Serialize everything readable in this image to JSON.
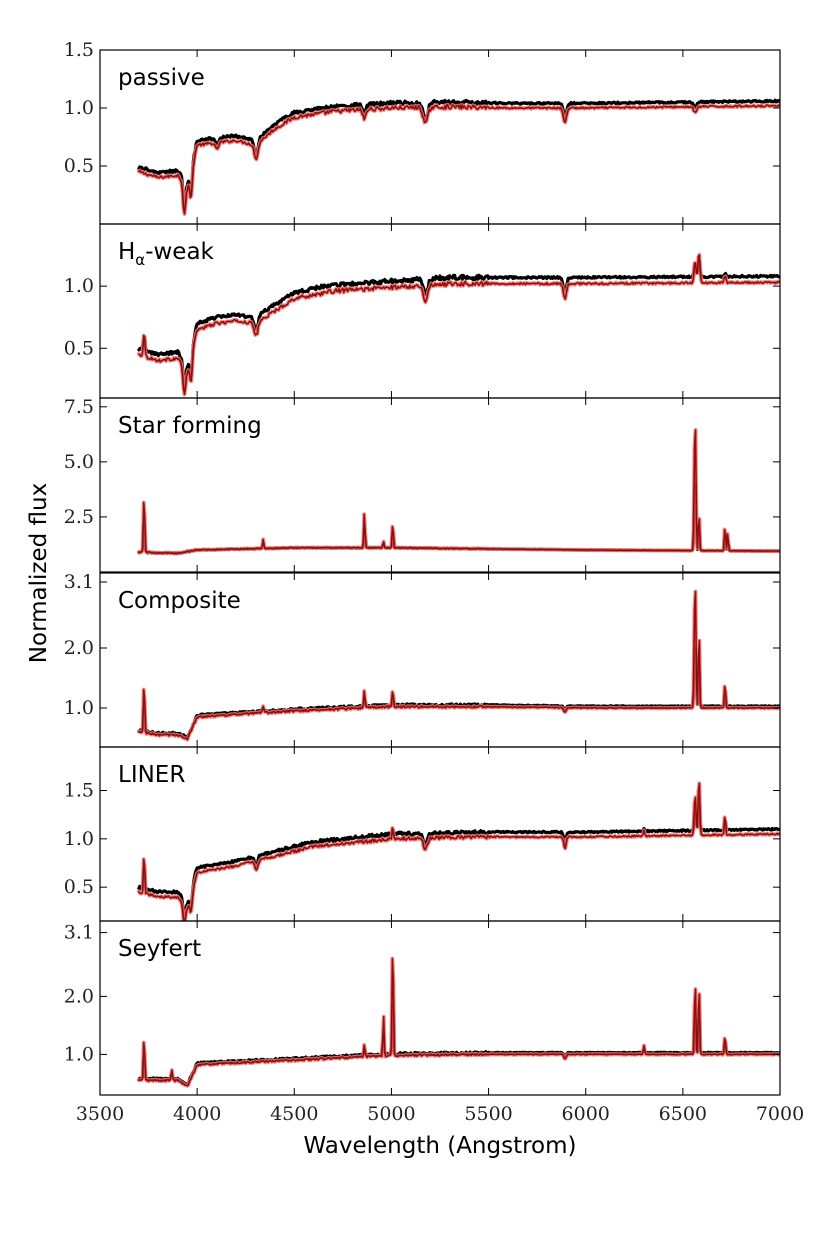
{
  "chart_data": {
    "type": "line",
    "ylabel": "Normalized flux",
    "xlabel": "Wavelength (Angstrom)",
    "xlim": [
      3500,
      7000
    ],
    "x_ticks": [
      3500,
      4000,
      4500,
      5000,
      5500,
      6000,
      6500,
      7000
    ],
    "x_tick_labels": [
      "3500",
      "4000",
      "4500",
      "5000",
      "5500",
      "6000",
      "6500",
      "7000"
    ],
    "colors": {
      "stacked": "#f07a78",
      "median": "#000000",
      "overlap": "#8b0000"
    },
    "panels": [
      {
        "title": "passive",
        "title_sub": "",
        "ylim": [
          0.0,
          1.5
        ],
        "y_ticks": [
          0.5,
          1.0,
          1.5
        ],
        "y_tick_labels": [
          "0.5",
          "1.0",
          "1.5"
        ],
        "continuum": [
          [
            3700,
            0.45
          ],
          [
            3800,
            0.4
          ],
          [
            3900,
            0.42
          ],
          [
            3950,
            0.3
          ],
          [
            4000,
            0.68
          ],
          [
            4100,
            0.7
          ],
          [
            4200,
            0.72
          ],
          [
            4300,
            0.68
          ],
          [
            4400,
            0.82
          ],
          [
            4500,
            0.92
          ],
          [
            4700,
            0.97
          ],
          [
            5000,
            1.0
          ],
          [
            5300,
            1.01
          ],
          [
            5600,
            1.0
          ],
          [
            6000,
            1.0
          ],
          [
            7000,
            1.02
          ]
        ],
        "black_offset": 0.04,
        "lines": [
          [
            3934,
            -0.25,
            0.7,
            6
          ],
          [
            3969,
            -0.22,
            0.7,
            6
          ],
          [
            4101,
            -0.06,
            0.5,
            8
          ],
          [
            4304,
            -0.12,
            0.8,
            10
          ],
          [
            4861,
            -0.08,
            0.7,
            8
          ],
          [
            5175,
            -0.14,
            0.8,
            12
          ],
          [
            5893,
            -0.13,
            0.8,
            8
          ],
          [
            6563,
            -0.05,
            0.7,
            8
          ]
        ]
      },
      {
        "title": "H",
        "title_sub": "α",
        "title_tail": "-weak",
        "ylim": [
          0.1,
          1.5
        ],
        "y_ticks": [
          0.5,
          1.0
        ],
        "y_tick_labels": [
          "0.5",
          "1.0"
        ],
        "continuum": [
          [
            3700,
            0.45
          ],
          [
            3800,
            0.4
          ],
          [
            3900,
            0.42
          ],
          [
            3950,
            0.3
          ],
          [
            4000,
            0.65
          ],
          [
            4100,
            0.7
          ],
          [
            4200,
            0.72
          ],
          [
            4300,
            0.7
          ],
          [
            4400,
            0.8
          ],
          [
            4500,
            0.9
          ],
          [
            4700,
            0.96
          ],
          [
            5000,
            0.99
          ],
          [
            5300,
            1.02
          ],
          [
            5600,
            1.02
          ],
          [
            6000,
            1.02
          ],
          [
            7000,
            1.03
          ]
        ],
        "black_offset": 0.05,
        "lines": [
          [
            3727,
            0.2,
            0.25,
            4
          ],
          [
            3934,
            -0.22,
            0.7,
            6
          ],
          [
            3969,
            -0.2,
            0.7,
            6
          ],
          [
            4304,
            -0.1,
            0.8,
            10
          ],
          [
            5175,
            -0.12,
            0.8,
            12
          ],
          [
            5893,
            -0.12,
            0.8,
            8
          ],
          [
            6563,
            0.18,
            0.45,
            5
          ],
          [
            6583,
            0.25,
            0.45,
            5
          ],
          [
            6717,
            0.05,
            0.5,
            5
          ]
        ]
      },
      {
        "title": "Star forming",
        "title_sub": "",
        "ylim": [
          0.0,
          7.9
        ],
        "y_ticks": [
          2.5,
          5.0,
          7.5
        ],
        "y_tick_labels": [
          "2.5",
          "5.0",
          "7.5"
        ],
        "continuum": [
          [
            3700,
            0.9
          ],
          [
            3900,
            0.85
          ],
          [
            4000,
            1.0
          ],
          [
            4500,
            1.1
          ],
          [
            5000,
            1.1
          ],
          [
            5500,
            1.05
          ],
          [
            6000,
            1.0
          ],
          [
            7000,
            0.95
          ]
        ],
        "black_offset": 0.0,
        "lines": [
          [
            3727,
            2.8,
            0.75,
            3
          ],
          [
            4340,
            0.4,
            0.75,
            3
          ],
          [
            4861,
            1.6,
            0.75,
            3
          ],
          [
            4959,
            0.3,
            0.75,
            3
          ],
          [
            5007,
            1.2,
            0.75,
            3
          ],
          [
            6563,
            6.2,
            0.65,
            4
          ],
          [
            6583,
            1.8,
            0.65,
            3
          ],
          [
            6717,
            1.2,
            0.65,
            3
          ],
          [
            6731,
            0.8,
            0.65,
            3
          ]
        ]
      },
      {
        "title": "Composite",
        "title_sub": "",
        "ylim": [
          0.35,
          3.25
        ],
        "y_ticks": [
          1.0,
          2.0,
          3.1
        ],
        "y_tick_labels": [
          "1.0",
          "2.0",
          "3.1"
        ],
        "continuum": [
          [
            3700,
            0.6
          ],
          [
            3800,
            0.55
          ],
          [
            3900,
            0.55
          ],
          [
            3950,
            0.48
          ],
          [
            4000,
            0.85
          ],
          [
            4500,
            0.95
          ],
          [
            5000,
            1.02
          ],
          [
            5500,
            1.02
          ],
          [
            6000,
            1.0
          ],
          [
            7000,
            1.0
          ]
        ],
        "black_offset": 0.03,
        "lines": [
          [
            3727,
            0.9,
            0.7,
            3
          ],
          [
            4340,
            0.1,
            0.7,
            4
          ],
          [
            4861,
            0.3,
            0.7,
            3
          ],
          [
            5007,
            0.3,
            0.7,
            3
          ],
          [
            6563,
            2.2,
            0.6,
            4
          ],
          [
            6583,
            1.4,
            0.6,
            3
          ],
          [
            6717,
            0.45,
            0.6,
            3
          ],
          [
            5893,
            -0.08,
            0.8,
            6
          ]
        ]
      },
      {
        "title": "LINER",
        "title_sub": "",
        "ylim": [
          0.15,
          1.95
        ],
        "y_ticks": [
          0.5,
          1.0,
          1.5
        ],
        "y_tick_labels": [
          "0.5",
          "1.0",
          "1.5"
        ],
        "continuum": [
          [
            3700,
            0.45
          ],
          [
            3800,
            0.4
          ],
          [
            3900,
            0.4
          ],
          [
            3950,
            0.28
          ],
          [
            4000,
            0.65
          ],
          [
            4200,
            0.72
          ],
          [
            4400,
            0.82
          ],
          [
            4600,
            0.92
          ],
          [
            5000,
            1.0
          ],
          [
            5500,
            1.02
          ],
          [
            6000,
            1.02
          ],
          [
            7000,
            1.05
          ]
        ],
        "black_offset": 0.05,
        "lines": [
          [
            3727,
            0.45,
            0.5,
            3
          ],
          [
            3934,
            -0.2,
            0.7,
            6
          ],
          [
            3969,
            -0.18,
            0.7,
            6
          ],
          [
            4304,
            -0.1,
            0.8,
            8
          ],
          [
            5007,
            0.12,
            0.5,
            3
          ],
          [
            5175,
            -0.12,
            0.8,
            10
          ],
          [
            5893,
            -0.12,
            0.8,
            6
          ],
          [
            6300,
            0.06,
            0.5,
            3
          ],
          [
            6563,
            0.45,
            0.35,
            4
          ],
          [
            6583,
            0.6,
            0.35,
            4
          ],
          [
            6717,
            0.22,
            0.4,
            3
          ]
        ]
      },
      {
        "title": "Seyfert",
        "title_sub": "",
        "ylim": [
          0.3,
          3.3
        ],
        "y_ticks": [
          1.0,
          2.0,
          3.1
        ],
        "y_tick_labels": [
          "1.0",
          "2.0",
          "3.1"
        ],
        "continuum": [
          [
            3700,
            0.55
          ],
          [
            3800,
            0.55
          ],
          [
            3900,
            0.55
          ],
          [
            3950,
            0.45
          ],
          [
            4000,
            0.82
          ],
          [
            4500,
            0.9
          ],
          [
            5000,
            0.98
          ],
          [
            5500,
            1.0
          ],
          [
            6000,
            1.0
          ],
          [
            7000,
            1.0
          ]
        ],
        "black_offset": 0.03,
        "lines": [
          [
            3727,
            0.8,
            0.7,
            3
          ],
          [
            3869,
            0.2,
            0.7,
            3
          ],
          [
            4861,
            0.2,
            0.7,
            3
          ],
          [
            4959,
            0.7,
            0.55,
            3
          ],
          [
            5007,
            2.1,
            0.45,
            3
          ],
          [
            6300,
            0.15,
            0.6,
            3
          ],
          [
            6563,
            1.4,
            0.5,
            3
          ],
          [
            6583,
            1.3,
            0.5,
            3
          ],
          [
            6717,
            0.35,
            0.6,
            3
          ],
          [
            5893,
            -0.08,
            0.8,
            6
          ]
        ]
      }
    ]
  }
}
